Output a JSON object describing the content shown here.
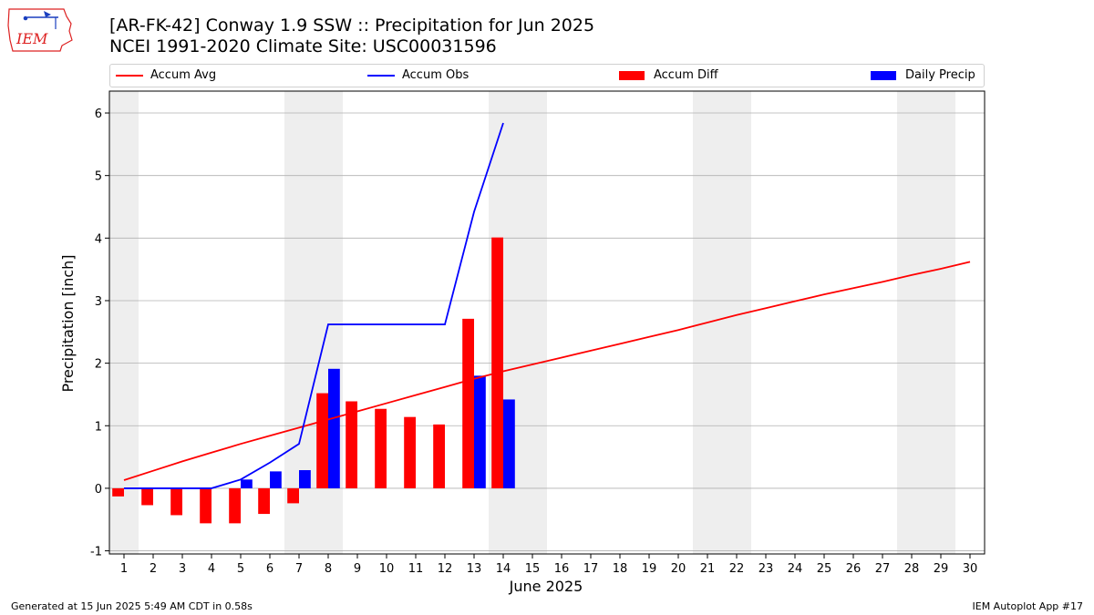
{
  "title": {
    "line1": "[AR-FK-42] Conway 1.9 SSW :: Precipitation for Jun 2025",
    "line2": "NCEI 1991-2020 Climate Site: USC00031596"
  },
  "logo": {
    "text": "IEM"
  },
  "footer": {
    "left": "Generated at 15 Jun 2025 5:49 AM CDT in 0.58s",
    "right": "IEM Autoplot App #17"
  },
  "colors": {
    "avg": "#ff0000",
    "obs": "#0000ff",
    "diff": "#ff0000",
    "daily": "#0000ff",
    "weekend": "#eeeeee",
    "grid": "#b0b0b0"
  },
  "chart_data": {
    "type": "bar",
    "title": "[AR-FK-42] Conway 1.9 SSW :: Precipitation for Jun 2025",
    "subtitle": "NCEI 1991-2020 Climate Site: USC00031596",
    "xlabel": "June 2025",
    "ylabel": "Precipitation [inch]",
    "xlim": [
      0.5,
      30.5
    ],
    "ylim": [
      -1.05,
      6.35
    ],
    "yticks": [
      -1,
      0,
      1,
      2,
      3,
      4,
      5,
      6
    ],
    "x": [
      1,
      2,
      3,
      4,
      5,
      6,
      7,
      8,
      9,
      10,
      11,
      12,
      13,
      14,
      15,
      16,
      17,
      18,
      19,
      20,
      21,
      22,
      23,
      24,
      25,
      26,
      27,
      28,
      29,
      30
    ],
    "grid": "horizontal",
    "legend_position": "top",
    "weekend_shading": [
      [
        0.5,
        1.5
      ],
      [
        6.5,
        8.5
      ],
      [
        13.5,
        15.5
      ],
      [
        20.5,
        22.5
      ],
      [
        27.5,
        29.5
      ]
    ],
    "series": [
      {
        "name": "Accum Avg",
        "kind": "line",
        "color": "#ff0000",
        "x": [
          1,
          2,
          3,
          4,
          5,
          6,
          7,
          8,
          9,
          10,
          11,
          12,
          13,
          14,
          15,
          16,
          17,
          18,
          19,
          20,
          21,
          22,
          23,
          24,
          25,
          26,
          27,
          28,
          29,
          30
        ],
        "values": [
          0.13,
          0.28,
          0.43,
          0.57,
          0.71,
          0.84,
          0.97,
          1.1,
          1.23,
          1.36,
          1.49,
          1.62,
          1.75,
          1.87,
          1.98,
          2.09,
          2.2,
          2.31,
          2.42,
          2.53,
          2.65,
          2.77,
          2.88,
          2.99,
          3.1,
          3.2,
          3.3,
          3.41,
          3.51,
          3.62
        ]
      },
      {
        "name": "Accum Obs",
        "kind": "line",
        "color": "#0000ff",
        "x": [
          1,
          2,
          3,
          4,
          5,
          6,
          7,
          8,
          9,
          10,
          11,
          12,
          13,
          14
        ],
        "values": [
          0,
          0,
          0,
          0,
          0.14,
          0.41,
          0.71,
          2.62,
          2.62,
          2.62,
          2.62,
          2.62,
          4.42,
          5.84
        ]
      },
      {
        "name": "Accum Diff",
        "kind": "bar",
        "color": "#ff0000",
        "x": [
          1,
          2,
          3,
          4,
          5,
          6,
          7,
          8,
          9,
          10,
          11,
          12,
          13,
          14
        ],
        "values": [
          -0.13,
          -0.27,
          -0.43,
          -0.56,
          -0.56,
          -0.41,
          -0.24,
          1.52,
          1.39,
          1.27,
          1.14,
          1.02,
          2.71,
          4.01
        ]
      },
      {
        "name": "Daily Precip",
        "kind": "bar",
        "color": "#0000ff",
        "x": [
          1,
          2,
          3,
          4,
          5,
          6,
          7,
          8,
          9,
          10,
          11,
          12,
          13,
          14
        ],
        "values": [
          0,
          0,
          0,
          0,
          0.14,
          0.27,
          0.29,
          1.91,
          0,
          0,
          0,
          0,
          1.8,
          1.42
        ]
      }
    ]
  }
}
